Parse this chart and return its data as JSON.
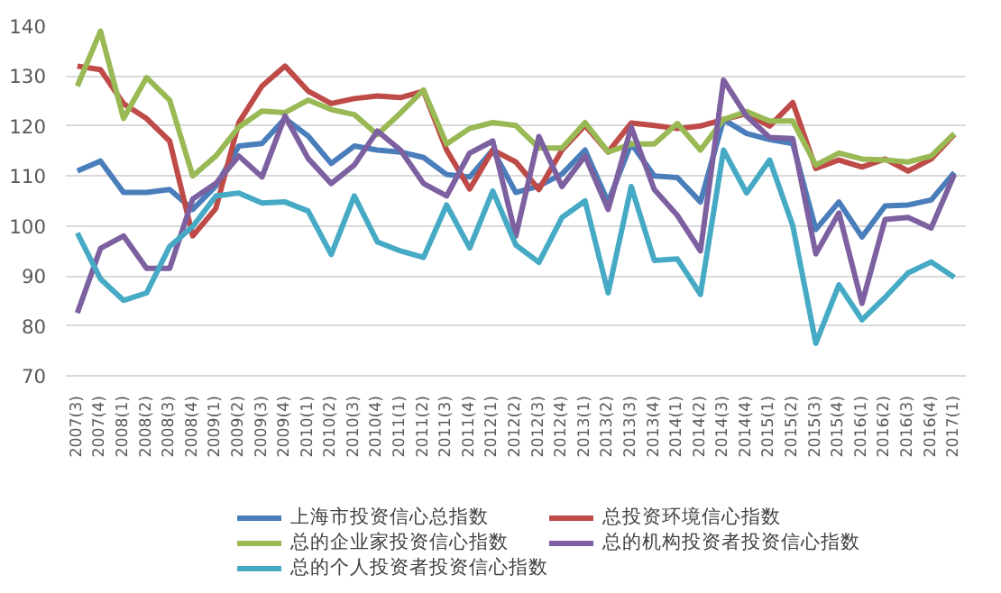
{
  "chart_data": {
    "type": "line",
    "categories": [
      "2007(3)",
      "2007(4)",
      "2008(1)",
      "2008(2)",
      "2008(3)",
      "2008(4)",
      "2009(1)",
      "2009(2)",
      "2009(3)",
      "2009(4)",
      "2010(1)",
      "2010(2)",
      "2010(3)",
      "2010(4)",
      "2011(1)",
      "2011(2)",
      "2011(3)",
      "2011(4)",
      "2012(1)",
      "2012(2)",
      "2012(3)",
      "2012(4)",
      "2013(1)",
      "2013(2)",
      "2013(3)",
      "2013(4)",
      "2014(1)",
      "2014(2)",
      "2014(3)",
      "2014(4)",
      "2015(1)",
      "2015(2)",
      "2015(3)",
      "2015(4)",
      "2016(1)",
      "2016(2)",
      "2016(3)",
      "2016(4)",
      "2017(1)"
    ],
    "ylim": [
      70,
      140
    ],
    "yticks": [
      70,
      80,
      90,
      100,
      110,
      120,
      130,
      140
    ],
    "grid": "y",
    "legend": "bottom",
    "series": [
      {
        "name": "上海市投资信心总指数",
        "color": "#4a7ebb",
        "values": [
          111,
          113,
          106.7,
          106.7,
          107.3,
          103.3,
          108,
          116,
          116.5,
          121.5,
          118,
          112.5,
          116,
          115.2,
          114.8,
          113.7,
          110.3,
          109.8,
          115.2,
          106.7,
          108,
          110.4,
          115.2,
          104.8,
          116.5,
          110,
          109.7,
          104.8,
          121.3,
          118.5,
          117.3,
          116.5,
          99.3,
          104.8,
          97.8,
          104,
          104.2,
          105.2,
          110.7
        ]
      },
      {
        "name": "总投资环境信心指数",
        "color": "#be4b48",
        "values": [
          132,
          131.3,
          124.5,
          121.5,
          117,
          98,
          103.5,
          120.7,
          128,
          132,
          127,
          124.5,
          125.5,
          126,
          125.7,
          127,
          115.2,
          107.4,
          115.2,
          112.8,
          107.3,
          115.2,
          120.1,
          114.8,
          120.6,
          120.1,
          119.5,
          120,
          121.3,
          122.5,
          120,
          124.7,
          111.5,
          113.2,
          111.8,
          113.4,
          111,
          113.4,
          118.3
        ]
      },
      {
        "name": "总的企业家投资信心指数",
        "color": "#98b954",
        "values": [
          128,
          139,
          121.5,
          129.7,
          125.2,
          110,
          114,
          119.8,
          123,
          122.7,
          125.2,
          123.3,
          122.3,
          118.3,
          122.6,
          127.2,
          116.4,
          119.5,
          120.7,
          120.1,
          115.6,
          115.6,
          120.7,
          114.8,
          116.4,
          116.4,
          120.5,
          115.2,
          121.3,
          122.9,
          121,
          121,
          112.2,
          114.6,
          113.4,
          113.2,
          112.8,
          114,
          118.5
        ]
      },
      {
        "name": "总的机构投资者投资信心指数",
        "color": "#7d60a0",
        "values": [
          82.6,
          95.5,
          98,
          91.5,
          91.5,
          105.4,
          108.5,
          114,
          109.8,
          122,
          113.5,
          108.5,
          112.2,
          119,
          115.2,
          108.5,
          106,
          114.6,
          117,
          98,
          117.9,
          107.9,
          114,
          103.3,
          119.8,
          107.3,
          102.1,
          95,
          129.2,
          122,
          117.7,
          117.5,
          94.4,
          102.6,
          84.5,
          101.3,
          101.7,
          99.6,
          110.3
        ]
      },
      {
        "name": "总的个人投资者投资信心指数",
        "color": "#46aac5",
        "values": [
          98.6,
          89.4,
          85.1,
          86.6,
          95.9,
          99.9,
          106,
          106.6,
          104.6,
          104.8,
          103,
          94.3,
          106,
          96.8,
          95,
          93.7,
          104.2,
          95.6,
          107,
          96.2,
          92.7,
          101.7,
          105,
          86.6,
          107.9,
          93.1,
          93.4,
          86.3,
          115.2,
          106.6,
          113.2,
          100.1,
          76.5,
          88.2,
          81.2,
          85.7,
          90.6,
          92.8,
          89.7
        ]
      }
    ]
  }
}
